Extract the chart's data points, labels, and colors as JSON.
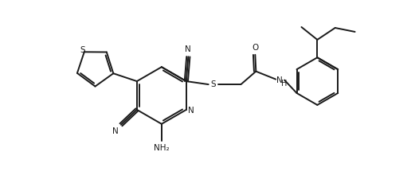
{
  "bg_color": "#ffffff",
  "line_color": "#1a1a1a",
  "line_width": 1.4,
  "figsize": [
    5.21,
    2.35
  ],
  "dpi": 100,
  "xlim": [
    0,
    10.42
  ],
  "ylim": [
    0,
    4.7
  ]
}
